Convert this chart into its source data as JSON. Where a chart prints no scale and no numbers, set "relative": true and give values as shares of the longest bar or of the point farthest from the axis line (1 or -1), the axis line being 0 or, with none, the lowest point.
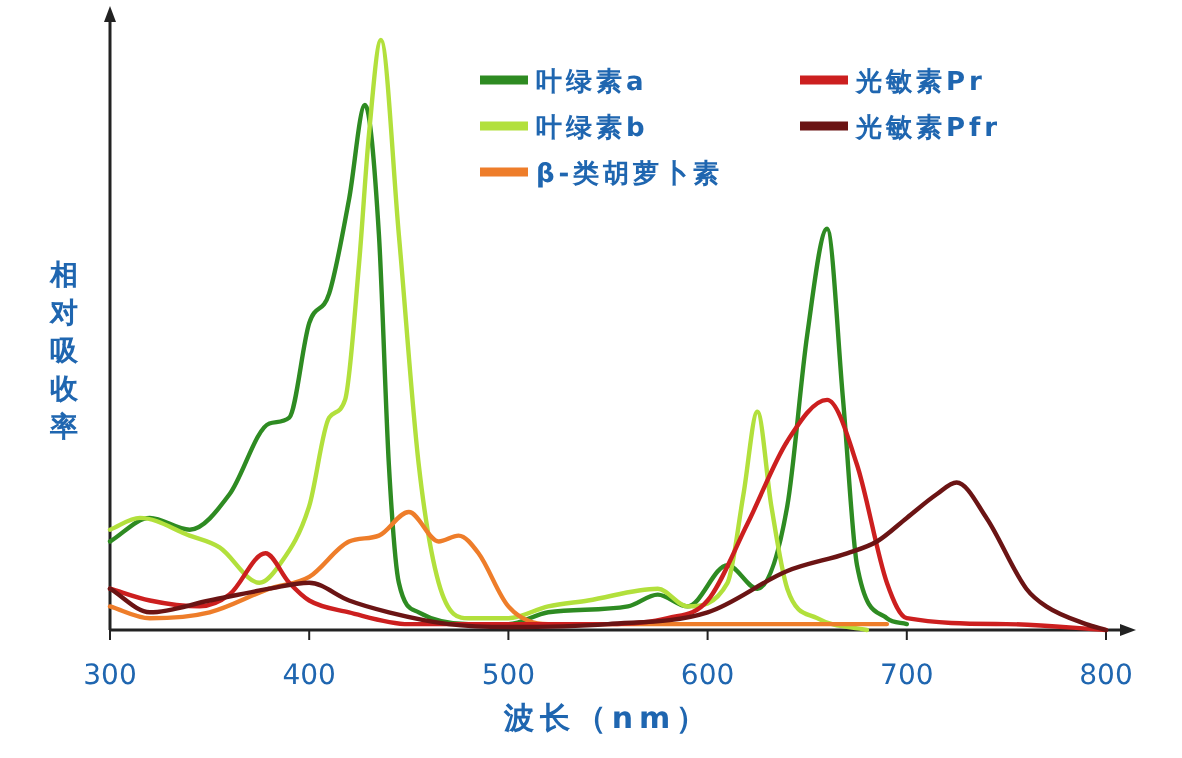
{
  "chart_data": {
    "type": "line",
    "relative": true,
    "xlabel": "波长（nm）",
    "ylabel": "相对吸收率",
    "xlim": [
      300,
      800
    ],
    "xticks": [
      300,
      400,
      500,
      600,
      700,
      800
    ],
    "legend": "top right",
    "series": [
      {
        "name": "叶绿素a",
        "color": "#2e8b22",
        "x": [
          300,
          320,
          340,
          360,
          380,
          390,
          400,
          410,
          420,
          428,
          435,
          440,
          445,
          455,
          480,
          500,
          520,
          560,
          575,
          590,
          610,
          625,
          640,
          650,
          660,
          668,
          675,
          690,
          700
        ],
        "values": [
          0.15,
          0.19,
          0.17,
          0.23,
          0.35,
          0.36,
          0.52,
          0.57,
          0.73,
          0.89,
          0.67,
          0.28,
          0.08,
          0.03,
          0.01,
          0.01,
          0.03,
          0.04,
          0.06,
          0.04,
          0.11,
          0.07,
          0.21,
          0.5,
          0.68,
          0.39,
          0.11,
          0.02,
          0.01
        ]
      },
      {
        "name": "叶绿素b",
        "color": "#b2e03c",
        "x": [
          300,
          315,
          340,
          355,
          375,
          385,
          400,
          410,
          418,
          425,
          430,
          436,
          445,
          455,
          465,
          480,
          500,
          520,
          540,
          575,
          590,
          610,
          618,
          625,
          632,
          640,
          655,
          680
        ],
        "values": [
          0.17,
          0.19,
          0.16,
          0.14,
          0.08,
          0.11,
          0.21,
          0.36,
          0.39,
          0.62,
          0.84,
          1.0,
          0.67,
          0.28,
          0.08,
          0.02,
          0.02,
          0.04,
          0.05,
          0.07,
          0.04,
          0.08,
          0.23,
          0.37,
          0.21,
          0.07,
          0.02,
          0.0
        ]
      },
      {
        "name": "β-类胡萝卜素",
        "color": "#ee7d2a",
        "x": [
          300,
          320,
          350,
          380,
          400,
          420,
          435,
          450,
          465,
          475,
          485,
          500,
          520,
          600,
          690
        ],
        "values": [
          0.04,
          0.02,
          0.03,
          0.07,
          0.09,
          0.15,
          0.16,
          0.2,
          0.15,
          0.16,
          0.13,
          0.04,
          0.01,
          0.01,
          0.01
        ]
      },
      {
        "name": "光敏素Pr",
        "color": "#cc1f1f",
        "x": [
          300,
          320,
          345,
          360,
          378,
          390,
          400,
          420,
          450,
          500,
          550,
          580,
          600,
          620,
          640,
          660,
          675,
          690,
          700,
          750,
          800
        ],
        "values": [
          0.07,
          0.05,
          0.04,
          0.06,
          0.13,
          0.08,
          0.05,
          0.03,
          0.01,
          0.01,
          0.01,
          0.02,
          0.05,
          0.18,
          0.32,
          0.39,
          0.28,
          0.08,
          0.02,
          0.01,
          0.0
        ]
      },
      {
        "name": "光敏素Pfr",
        "color": "#6b1414",
        "x": [
          300,
          320,
          350,
          380,
          400,
          420,
          440,
          470,
          500,
          550,
          600,
          640,
          670,
          685,
          700,
          715,
          725,
          740,
          760,
          770,
          790,
          800
        ],
        "values": [
          0.07,
          0.03,
          0.05,
          0.07,
          0.08,
          0.05,
          0.03,
          0.01,
          0.005,
          0.01,
          0.03,
          0.1,
          0.13,
          0.15,
          0.19,
          0.23,
          0.25,
          0.19,
          0.07,
          0.04,
          0.01,
          0.0
        ]
      }
    ]
  }
}
